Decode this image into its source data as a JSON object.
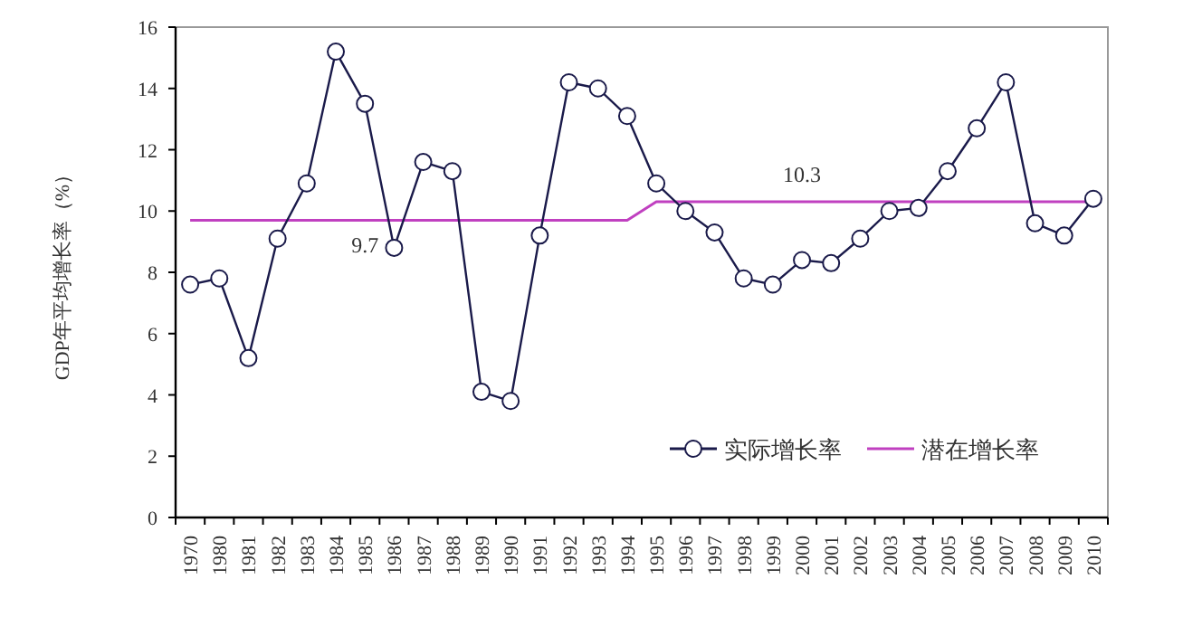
{
  "chart_data": {
    "type": "line",
    "ylabel": "GDP年平均增长率（%）",
    "categories": [
      "1970",
      "1980",
      "1981",
      "1982",
      "1983",
      "1984",
      "1985",
      "1986",
      "1987",
      "1988",
      "1989",
      "1990",
      "1991",
      "1992",
      "1993",
      "1994",
      "1995",
      "1996",
      "1997",
      "1998",
      "1999",
      "2000",
      "2001",
      "2002",
      "2003",
      "2004",
      "2005",
      "2006",
      "2007",
      "2008",
      "2009",
      "2010"
    ],
    "series": [
      {
        "name": "实际增长率",
        "color": "#1a1a4a",
        "marker": "circle",
        "values": [
          7.6,
          7.8,
          5.2,
          9.1,
          10.9,
          15.2,
          13.5,
          8.8,
          11.6,
          11.3,
          4.1,
          3.8,
          9.2,
          14.2,
          14.0,
          13.1,
          10.9,
          10.0,
          9.3,
          7.8,
          7.6,
          8.4,
          8.3,
          9.1,
          10.0,
          10.1,
          11.3,
          12.7,
          14.2,
          9.6,
          9.2,
          10.4
        ]
      },
      {
        "name": "潜在增长率",
        "color": "#c040c0",
        "marker": "none",
        "values": [
          9.7,
          9.7,
          9.7,
          9.7,
          9.7,
          9.7,
          9.7,
          9.7,
          9.7,
          9.7,
          9.7,
          9.7,
          9.7,
          9.7,
          9.7,
          9.7,
          10.3,
          10.3,
          10.3,
          10.3,
          10.3,
          10.3,
          10.3,
          10.3,
          10.3,
          10.3,
          10.3,
          10.3,
          10.3,
          10.3,
          10.3,
          10.3
        ]
      }
    ],
    "annotations": [
      {
        "text": "9.7",
        "x": "1985",
        "y": 9.7
      },
      {
        "text": "10.3",
        "x": "2000",
        "y": 10.3
      }
    ],
    "ylim": [
      0,
      16
    ],
    "yticks": [
      0,
      2,
      4,
      6,
      8,
      10,
      12,
      14,
      16
    ],
    "grid": false,
    "legend": "bottom right",
    "line_style": "solid"
  }
}
